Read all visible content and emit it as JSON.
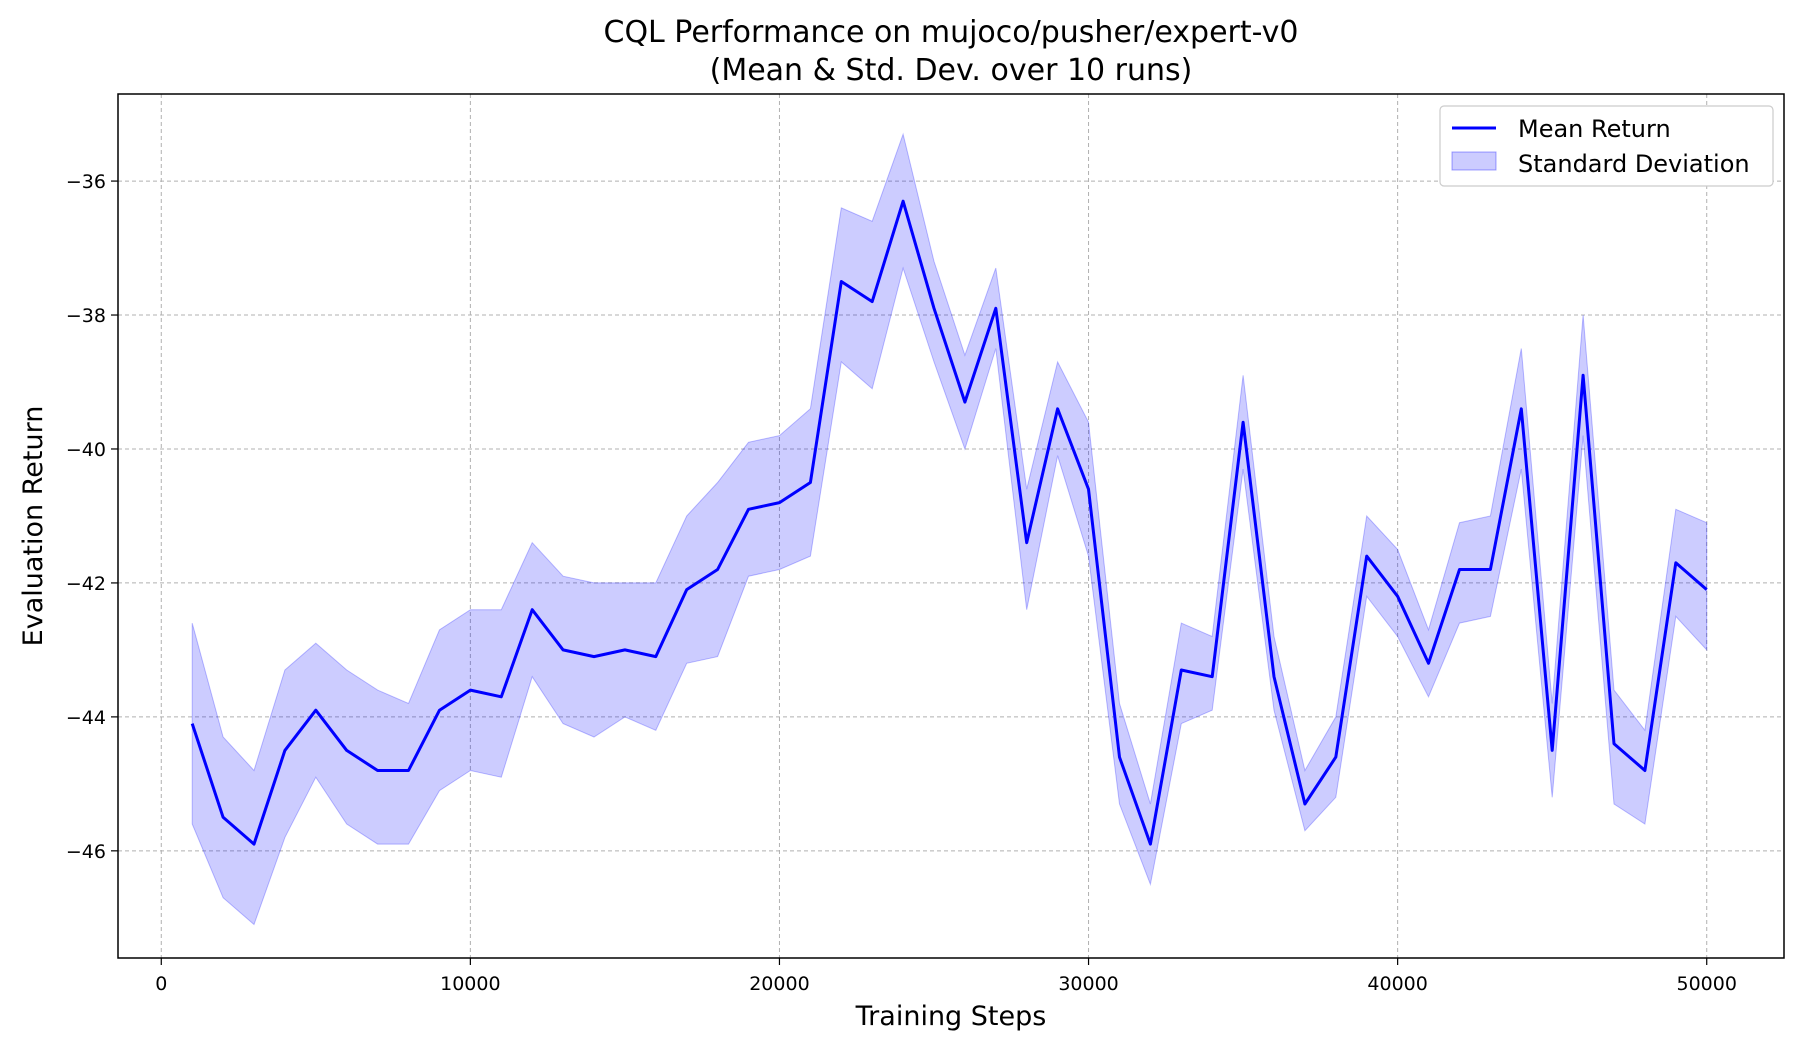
{
  "chart_data": {
    "type": "line",
    "title": [
      "CQL Performance on mujoco/pusher/expert-v0",
      "(Mean & Std. Dev. over 10 runs)"
    ],
    "xlabel": "Training Steps",
    "ylabel": "Evaluation Return",
    "xlim": [
      -1400,
      52500
    ],
    "ylim": [
      -47.6,
      -34.7
    ],
    "xticks": [
      0,
      10000,
      20000,
      30000,
      40000,
      50000
    ],
    "yticks": [
      -46,
      -44,
      -42,
      -40,
      -38,
      -36
    ],
    "grid": true,
    "legend": {
      "placement": "top-right",
      "entries": [
        {
          "label": "Mean Return",
          "kind": "line"
        },
        {
          "label": "Standard Deviation",
          "kind": "band"
        }
      ]
    },
    "colors": {
      "line": "#0000ff",
      "band": "#0000ff"
    },
    "x": [
      1000,
      2000,
      3000,
      4000,
      5000,
      6000,
      7000,
      8000,
      9000,
      10000,
      11000,
      12000,
      13000,
      14000,
      15000,
      16000,
      17000,
      18000,
      19000,
      20000,
      21000,
      22000,
      23000,
      24000,
      25000,
      26000,
      27000,
      28000,
      29000,
      30000,
      31000,
      32000,
      33000,
      34000,
      35000,
      36000,
      37000,
      38000,
      39000,
      40000,
      41000,
      42000,
      43000,
      44000,
      45000,
      46000,
      47000,
      48000,
      49000,
      50000
    ],
    "series": [
      {
        "name": "Mean Return",
        "values": [
          -44.1,
          -45.5,
          -45.9,
          -44.5,
          -43.9,
          -44.5,
          -44.8,
          -44.8,
          -43.9,
          -43.6,
          -43.7,
          -42.4,
          -43.0,
          -43.1,
          -43.0,
          -43.1,
          -42.1,
          -41.8,
          -40.9,
          -40.8,
          -40.5,
          -37.5,
          -37.8,
          -36.3,
          -37.9,
          -39.3,
          -37.9,
          -41.4,
          -39.4,
          -40.6,
          -44.6,
          -45.9,
          -43.3,
          -43.4,
          -39.6,
          -43.4,
          -45.3,
          -44.6,
          -41.6,
          -42.2,
          -43.2,
          -41.8,
          -41.8,
          -39.4,
          -44.5,
          -38.9,
          -44.4,
          -44.8,
          -41.7,
          -42.1
        ]
      },
      {
        "name": "Standard Deviation",
        "upper": [
          -42.6,
          -44.3,
          -44.8,
          -43.3,
          -42.9,
          -43.3,
          -43.6,
          -43.8,
          -42.7,
          -42.4,
          -42.4,
          -41.4,
          -41.9,
          -42.0,
          -42.0,
          -42.0,
          -41.0,
          -40.5,
          -39.9,
          -39.8,
          -39.4,
          -36.4,
          -36.6,
          -35.3,
          -37.2,
          -38.6,
          -37.3,
          -40.6,
          -38.7,
          -39.6,
          -43.8,
          -45.3,
          -42.6,
          -42.8,
          -38.9,
          -42.8,
          -44.8,
          -44.0,
          -41.0,
          -41.5,
          -42.7,
          -41.1,
          -41.0,
          -38.5,
          -43.8,
          -38.0,
          -43.6,
          -44.2,
          -40.9,
          -41.1
        ],
        "lower": [
          -45.6,
          -46.7,
          -47.1,
          -45.8,
          -44.9,
          -45.6,
          -45.9,
          -45.9,
          -45.1,
          -44.8,
          -44.9,
          -43.4,
          -44.1,
          -44.3,
          -44.0,
          -44.2,
          -43.2,
          -43.1,
          -41.9,
          -41.8,
          -41.6,
          -38.7,
          -39.1,
          -37.3,
          -38.7,
          -40.0,
          -38.5,
          -42.4,
          -40.1,
          -41.6,
          -45.3,
          -46.5,
          -44.1,
          -43.9,
          -40.3,
          -43.9,
          -45.7,
          -45.2,
          -42.2,
          -42.8,
          -43.7,
          -42.6,
          -42.5,
          -40.3,
          -45.2,
          -39.8,
          -45.3,
          -45.6,
          -42.5,
          -43.0
        ]
      }
    ]
  }
}
